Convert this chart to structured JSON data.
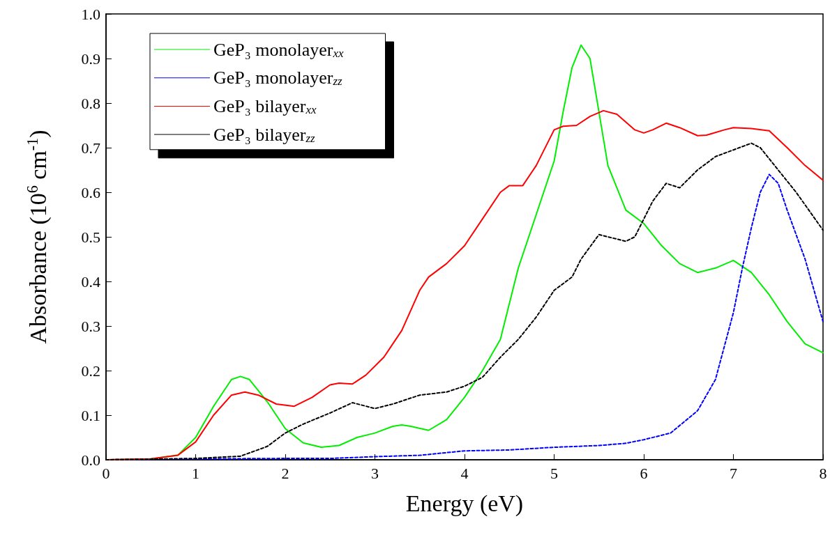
{
  "chart_data": {
    "type": "line",
    "xlabel": "Energy (eV)",
    "ylabel": "Absorbance (10$^{6}$ cm$^{-1}$)",
    "xlim": [
      0,
      8
    ],
    "ylim": [
      0,
      1
    ],
    "xticks": [
      0,
      1,
      2,
      3,
      4,
      5,
      6,
      7,
      8
    ],
    "yticks": [
      {
        "value": 0,
        "label": "0.0"
      },
      {
        "value": 0.1,
        "label": "0.1"
      },
      {
        "value": 0.2,
        "label": "0.2"
      },
      {
        "value": 0.3,
        "label": "0.3"
      },
      {
        "value": 0.4,
        "label": "0.4"
      },
      {
        "value": 0.5,
        "label": "0.5"
      },
      {
        "value": 0.6,
        "label": "0.6"
      },
      {
        "value": 0.7,
        "label": "0.7"
      },
      {
        "value": 0.8,
        "label": "0.8"
      },
      {
        "value": 0.9,
        "label": "0.9"
      },
      {
        "value": 1,
        "label": "1.0"
      }
    ],
    "grid": false,
    "legend": "top left",
    "marker": "none",
    "series": [
      {
        "name": "GeP₃ monolayer$_{xx}$",
        "color": "#00ee00",
        "line_style": "solid",
        "x": [
          0,
          0.5,
          0.8,
          1.0,
          1.2,
          1.4,
          1.5,
          1.6,
          1.8,
          2.0,
          2.2,
          2.4,
          2.6,
          2.8,
          3.0,
          3.2,
          3.3,
          3.4,
          3.6,
          3.8,
          4.0,
          4.2,
          4.4,
          4.6,
          4.8,
          5.0,
          5.1,
          5.2,
          5.3,
          5.4,
          5.5,
          5.6,
          5.8,
          6.0,
          6.2,
          6.4,
          6.6,
          6.8,
          7.0,
          7.2,
          7.4,
          7.6,
          7.8,
          8.0
        ],
        "values": [
          0,
          0.002,
          0.01,
          0.05,
          0.12,
          0.18,
          0.187,
          0.18,
          0.13,
          0.07,
          0.038,
          0.028,
          0.032,
          0.05,
          0.06,
          0.075,
          0.078,
          0.075,
          0.066,
          0.09,
          0.14,
          0.2,
          0.27,
          0.43,
          0.55,
          0.67,
          0.78,
          0.88,
          0.93,
          0.9,
          0.78,
          0.66,
          0.56,
          0.53,
          0.48,
          0.44,
          0.42,
          0.43,
          0.447,
          0.42,
          0.37,
          0.31,
          0.26,
          0.24
        ]
      },
      {
        "name": "GeP₃ monolayer$_{zz}$",
        "color": "#0000ff",
        "line_style": "dashed",
        "x": [
          0,
          1,
          2,
          2.5,
          3,
          3.5,
          4,
          4.5,
          5,
          5.5,
          5.8,
          6,
          6.3,
          6.6,
          6.8,
          7.0,
          7.1,
          7.2,
          7.3,
          7.4,
          7.5,
          7.6,
          7.8,
          8.0
        ],
        "values": [
          0,
          0.002,
          0.003,
          0.003,
          0.007,
          0.01,
          0.02,
          0.022,
          0.028,
          0.032,
          0.037,
          0.045,
          0.06,
          0.11,
          0.18,
          0.33,
          0.43,
          0.52,
          0.6,
          0.64,
          0.62,
          0.56,
          0.45,
          0.31
        ]
      },
      {
        "name": "GeP₃ bilayer$_{xx}$",
        "color": "#ff0000",
        "line_style": "solid",
        "x": [
          0,
          0.5,
          0.8,
          1.0,
          1.2,
          1.4,
          1.55,
          1.7,
          1.9,
          2.1,
          2.3,
          2.5,
          2.6,
          2.75,
          2.9,
          3.1,
          3.3,
          3.5,
          3.6,
          3.8,
          4.0,
          4.2,
          4.4,
          4.5,
          4.65,
          4.8,
          5.0,
          5.1,
          5.25,
          5.4,
          5.55,
          5.7,
          5.9,
          6.0,
          6.1,
          6.25,
          6.4,
          6.6,
          6.7,
          6.9,
          7.0,
          7.2,
          7.4,
          7.6,
          7.8,
          8.0
        ],
        "values": [
          0,
          0.002,
          0.01,
          0.04,
          0.1,
          0.145,
          0.152,
          0.145,
          0.125,
          0.12,
          0.14,
          0.168,
          0.172,
          0.17,
          0.19,
          0.23,
          0.29,
          0.38,
          0.41,
          0.44,
          0.48,
          0.54,
          0.6,
          0.615,
          0.615,
          0.66,
          0.74,
          0.748,
          0.75,
          0.77,
          0.783,
          0.775,
          0.74,
          0.733,
          0.74,
          0.755,
          0.745,
          0.727,
          0.728,
          0.74,
          0.745,
          0.743,
          0.738,
          0.7,
          0.66,
          0.627
        ]
      },
      {
        "name": "GeP₃ bilayer$_{zz}$",
        "color": "#000000",
        "line_style": "dashed",
        "x": [
          0,
          1.0,
          1.5,
          1.8,
          2.0,
          2.2,
          2.5,
          2.75,
          3.0,
          3.2,
          3.5,
          3.8,
          4.0,
          4.2,
          4.4,
          4.6,
          4.8,
          5.0,
          5.2,
          5.3,
          5.5,
          5.6,
          5.8,
          5.9,
          6.1,
          6.25,
          6.4,
          6.6,
          6.8,
          7.0,
          7.2,
          7.3,
          7.5,
          7.7,
          8.0
        ],
        "values": [
          0,
          0.003,
          0.008,
          0.03,
          0.06,
          0.08,
          0.105,
          0.128,
          0.115,
          0.125,
          0.145,
          0.152,
          0.165,
          0.185,
          0.23,
          0.27,
          0.32,
          0.38,
          0.41,
          0.45,
          0.505,
          0.5,
          0.49,
          0.5,
          0.58,
          0.62,
          0.61,
          0.65,
          0.68,
          0.695,
          0.71,
          0.7,
          0.65,
          0.6,
          0.515
        ]
      }
    ]
  }
}
